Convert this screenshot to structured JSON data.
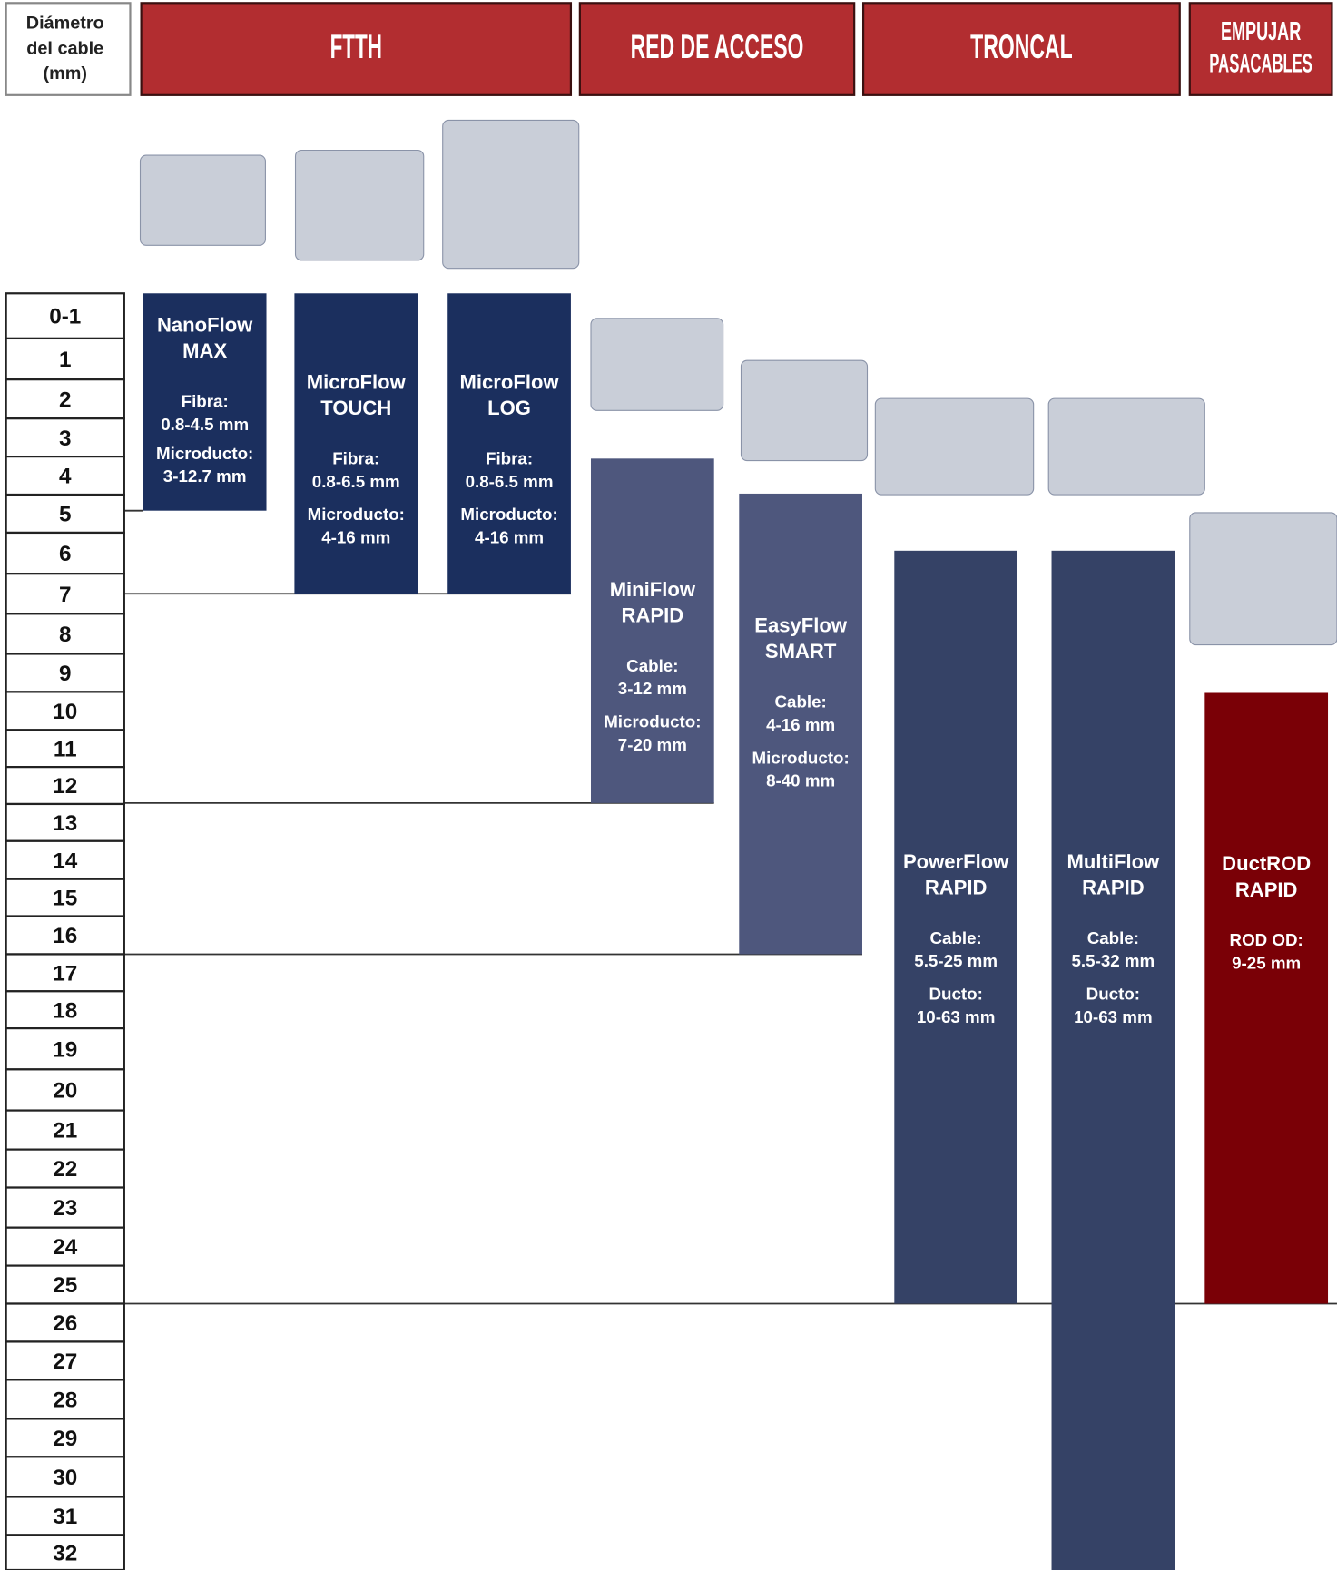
{
  "header": {
    "axis_label": [
      "Diámetro",
      "del cable",
      "(mm)"
    ]
  },
  "sections": [
    [
      "FTTH"
    ],
    [
      "RED DE ACCESO"
    ],
    [
      "TRONCAL"
    ],
    [
      "EMPUJAR",
      "PASACABLES"
    ]
  ],
  "rows": [
    "0-1",
    "1",
    "2",
    "3",
    "4",
    "5",
    "6",
    "7",
    "8",
    "9",
    "10",
    "11",
    "12",
    "13",
    "14",
    "15",
    "16",
    "17",
    "18",
    "19",
    "20",
    "21",
    "22",
    "23",
    "24",
    "25",
    "26",
    "27",
    "28",
    "29",
    "30",
    "31",
    "32"
  ],
  "products": [
    {
      "name": [
        "NanoFlow",
        "MAX"
      ],
      "specs": [
        [
          "Fibra:",
          "0.8-4.5 mm"
        ],
        [
          "Microducto:",
          "3-12.7 mm"
        ]
      ]
    },
    {
      "name": [
        "MicroFlow",
        "TOUCH"
      ],
      "specs": [
        [
          "Fibra:",
          "0.8-6.5 mm"
        ],
        [
          "Microducto:",
          "4-16 mm"
        ]
      ]
    },
    {
      "name": [
        "MicroFlow",
        "LOG"
      ],
      "specs": [
        [
          "Fibra:",
          "0.8-6.5 mm"
        ],
        [
          "Microducto:",
          "4-16 mm"
        ]
      ]
    },
    {
      "name": [
        "MiniFlow",
        "RAPID"
      ],
      "specs": [
        [
          "Cable:",
          "3-12 mm"
        ],
        [
          "Microducto:",
          "7-20 mm"
        ]
      ]
    },
    {
      "name": [
        "EasyFlow",
        "SMART"
      ],
      "specs": [
        [
          "Cable:",
          "4-16 mm"
        ],
        [
          "Microducto:",
          "8-40 mm"
        ]
      ]
    },
    {
      "name": [
        "PowerFlow",
        "RAPID"
      ],
      "specs": [
        [
          "Cable:",
          "5.5-25 mm"
        ],
        [
          "Ducto:",
          "10-63 mm"
        ]
      ]
    },
    {
      "name": [
        "MultiFlow",
        "RAPID"
      ],
      "specs": [
        [
          "Cable:",
          "5.5-32 mm"
        ],
        [
          "Ducto:",
          "10-63 mm"
        ]
      ]
    },
    {
      "name": [
        "DuctROD",
        "RAPID"
      ],
      "specs": [
        [
          "ROD OD:",
          "9-25 mm"
        ]
      ]
    }
  ]
}
